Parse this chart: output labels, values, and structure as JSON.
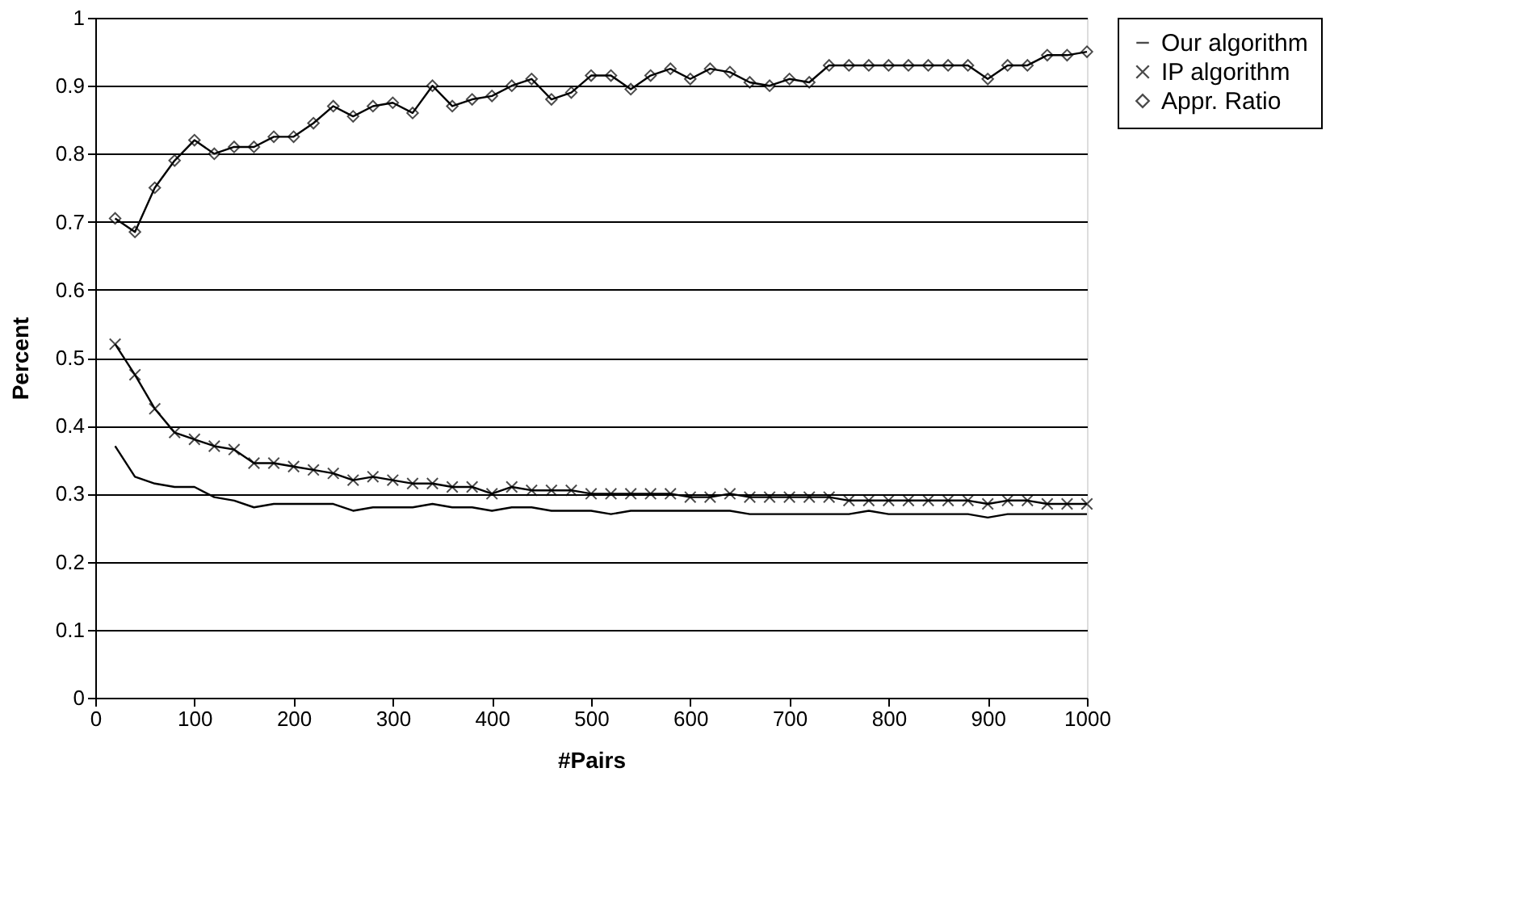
{
  "chart_data": {
    "type": "line",
    "xlabel": "#Pairs",
    "ylabel": "Percent",
    "x": [
      20,
      40,
      60,
      80,
      100,
      120,
      140,
      160,
      180,
      200,
      220,
      240,
      260,
      280,
      300,
      320,
      340,
      360,
      380,
      400,
      420,
      440,
      460,
      480,
      500,
      520,
      540,
      560,
      580,
      600,
      620,
      640,
      660,
      680,
      700,
      720,
      740,
      760,
      780,
      800,
      820,
      840,
      860,
      880,
      900,
      920,
      940,
      960,
      980,
      1000
    ],
    "series": [
      {
        "name": "Our algorithm",
        "color": "#000000",
        "marker": "none",
        "values": [
          0.37,
          0.325,
          0.315,
          0.31,
          0.31,
          0.295,
          0.29,
          0.28,
          0.285,
          0.285,
          0.285,
          0.285,
          0.275,
          0.28,
          0.28,
          0.28,
          0.285,
          0.28,
          0.28,
          0.275,
          0.28,
          0.28,
          0.275,
          0.275,
          0.275,
          0.27,
          0.275,
          0.275,
          0.275,
          0.275,
          0.275,
          0.275,
          0.27,
          0.27,
          0.27,
          0.27,
          0.27,
          0.27,
          0.275,
          0.27,
          0.27,
          0.27,
          0.27,
          0.27,
          0.265,
          0.27,
          0.27,
          0.27,
          0.27,
          0.27
        ]
      },
      {
        "name": "IP algorithm",
        "color": "#000000",
        "marker": "cross",
        "values": [
          0.52,
          0.475,
          0.425,
          0.39,
          0.38,
          0.37,
          0.365,
          0.345,
          0.345,
          0.34,
          0.335,
          0.33,
          0.32,
          0.325,
          0.32,
          0.315,
          0.315,
          0.31,
          0.31,
          0.3,
          0.31,
          0.305,
          0.305,
          0.305,
          0.3,
          0.3,
          0.3,
          0.3,
          0.3,
          0.295,
          0.295,
          0.3,
          0.295,
          0.295,
          0.295,
          0.295,
          0.295,
          0.29,
          0.29,
          0.29,
          0.29,
          0.29,
          0.29,
          0.29,
          0.285,
          0.29,
          0.29,
          0.285,
          0.285,
          0.285
        ]
      },
      {
        "name": "Appr. Ratio",
        "color": "#000000",
        "marker": "diamond",
        "values": [
          0.705,
          0.685,
          0.75,
          0.79,
          0.82,
          0.8,
          0.81,
          0.81,
          0.825,
          0.825,
          0.845,
          0.87,
          0.855,
          0.87,
          0.875,
          0.86,
          0.9,
          0.87,
          0.88,
          0.885,
          0.9,
          0.91,
          0.88,
          0.89,
          0.915,
          0.915,
          0.895,
          0.915,
          0.925,
          0.91,
          0.925,
          0.92,
          0.905,
          0.9,
          0.91,
          0.905,
          0.93,
          0.93,
          0.93,
          0.93,
          0.93,
          0.93,
          0.93,
          0.93,
          0.91,
          0.93,
          0.93,
          0.945,
          0.945,
          0.95
        ]
      }
    ],
    "xlim": [
      0,
      1000
    ],
    "xticks": [
      0,
      100,
      200,
      300,
      400,
      500,
      600,
      700,
      800,
      900,
      1000
    ],
    "ylim": [
      0,
      1
    ],
    "yticks": [
      0,
      0.1,
      0.2,
      0.3,
      0.4,
      0.5,
      0.6,
      0.7,
      0.8,
      0.9,
      1
    ],
    "grid": "y",
    "legend": "right"
  }
}
